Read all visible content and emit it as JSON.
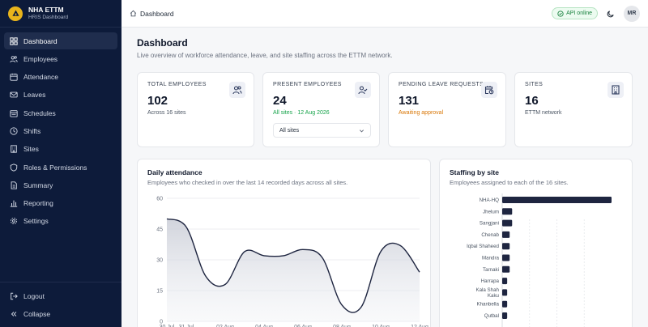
{
  "brand": {
    "title": "NHA ETTM",
    "subtitle": "HRIS Dashboard"
  },
  "sidebar": {
    "items": [
      {
        "label": "Dashboard",
        "icon": "grid-icon",
        "active": true
      },
      {
        "label": "Employees",
        "icon": "users-icon"
      },
      {
        "label": "Attendance",
        "icon": "calendar-icon"
      },
      {
        "label": "Leaves",
        "icon": "mail-icon"
      },
      {
        "label": "Schedules",
        "icon": "calendar-range-icon"
      },
      {
        "label": "Shifts",
        "icon": "clock-icon"
      },
      {
        "label": "Sites",
        "icon": "building-icon"
      },
      {
        "label": "Roles & Permissions",
        "icon": "shield-icon"
      },
      {
        "label": "Summary",
        "icon": "document-icon"
      },
      {
        "label": "Reporting",
        "icon": "bar-chart-icon"
      },
      {
        "label": "Settings",
        "icon": "gear-icon"
      }
    ],
    "footer": [
      {
        "label": "Logout",
        "icon": "logout-icon"
      },
      {
        "label": "Collapse",
        "icon": "chevrons-left-icon"
      }
    ]
  },
  "topbar": {
    "breadcrumb": "Dashboard",
    "api_status": "API online",
    "avatar_initials": "MR"
  },
  "page": {
    "title": "Dashboard",
    "description": "Live overview of workforce attendance, leave, and site staffing across the ETTM network."
  },
  "stats": [
    {
      "label": "TOTAL EMPLOYEES",
      "value": "102",
      "sub": "Across 16 sites",
      "icon": "users-icon"
    },
    {
      "label": "PRESENT EMPLOYEES",
      "value": "24",
      "sub": "All sites · 12 Aug 2026",
      "icon": "user-check-icon",
      "filter": "All sites"
    },
    {
      "label": "PENDING LEAVE REQUESTS",
      "value": "131",
      "sub": "Awaiting approval",
      "icon": "calendar-clock-icon"
    },
    {
      "label": "SITES",
      "value": "16",
      "sub": "ETTM network",
      "icon": "building-icon"
    }
  ],
  "attendance_panel": {
    "title": "Daily attendance",
    "description": "Employees who checked in over the last 14 recorded days across all sites."
  },
  "staffing_panel": {
    "title": "Staffing by site",
    "description": "Employees assigned to each of the 16 sites."
  },
  "chart_data": [
    {
      "type": "area",
      "x": [
        "30 Jul",
        "31 Jul",
        "01 Aug",
        "02 Aug",
        "03 Aug",
        "04 Aug",
        "05 Aug",
        "06 Aug",
        "07 Aug",
        "08 Aug",
        "09 Aug",
        "10 Aug",
        "11 Aug",
        "12 Aug"
      ],
      "x_tick_labels": [
        "30 Jul",
        "31 Jul",
        "02 Aug",
        "04 Aug",
        "06 Aug",
        "08 Aug",
        "10 Aug",
        "12 Aug"
      ],
      "values": [
        50,
        46,
        22,
        18,
        34,
        32,
        32,
        35,
        31,
        8,
        7,
        34,
        37,
        24
      ],
      "ylim": [
        0,
        60
      ],
      "y_ticks": [
        0,
        15,
        30,
        45,
        60
      ],
      "grid": true,
      "color": "#1e2540"
    },
    {
      "type": "bar",
      "orientation": "horizontal",
      "categories": [
        "NHA-HQ",
        "Jhelum",
        "Sangjani",
        "Chenab",
        "Iqbal Shaheed",
        "Mandra",
        "Tarnaki",
        "Harrapa",
        "Kala Shah Kaku",
        "Khanbella",
        "Qutbal"
      ],
      "category_labels_display": [
        "NHA-HQ",
        "Jhelum",
        "Sangjani",
        "Chenab",
        "Iqbal Shaheed",
        "Mandra",
        "Tarnaki",
        "Harrapa",
        "Kala Shah\nKaku",
        "Khanbella",
        "Qutbal"
      ],
      "values": [
        44,
        4,
        4,
        3,
        3,
        3,
        3,
        2,
        2,
        2,
        2
      ],
      "xlim": [
        0,
        44
      ],
      "grid": true,
      "color": "#1e2540"
    }
  ]
}
